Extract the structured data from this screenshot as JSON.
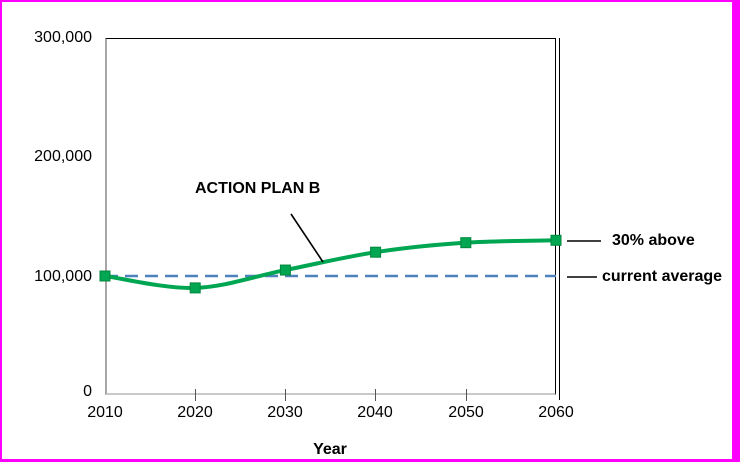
{
  "chart_data": {
    "type": "line",
    "title": "",
    "xlabel": "Year",
    "ylabel": "",
    "x": [
      2010,
      2020,
      2030,
      2040,
      2050,
      2060
    ],
    "xtick_labels": [
      "2010",
      "2020",
      "2030",
      "2040",
      "2050",
      "2060"
    ],
    "xlim": [
      2010,
      2060
    ],
    "ylim": [
      0,
      300000
    ],
    "yticks": [
      0,
      100000,
      200000,
      300000
    ],
    "ytick_labels": [
      "0",
      "100,000",
      "200,000",
      "300,000"
    ],
    "grid": false,
    "legend": "none",
    "series": [
      {
        "name": "ACTION PLAN B",
        "values": [
          100000,
          90000,
          105000,
          120000,
          128000,
          130000
        ],
        "color": "#00A651",
        "marker": "square",
        "marker_color": "#00A651",
        "smooth": true,
        "end_label": "30% above"
      }
    ],
    "reference_line": {
      "value": 100000,
      "style": "dashed",
      "color": "#4F81BD",
      "label": "current average"
    },
    "annotations": [
      {
        "text": "ACTION PLAN B",
        "points_to": "curve between 2030 and 2040"
      }
    ]
  },
  "colors": {
    "frame_border": "#FF00FF",
    "series_green": "#00A651",
    "reference_blue": "#4F81BD",
    "axis_gray": "#A6A6A6",
    "text": "#000000"
  }
}
